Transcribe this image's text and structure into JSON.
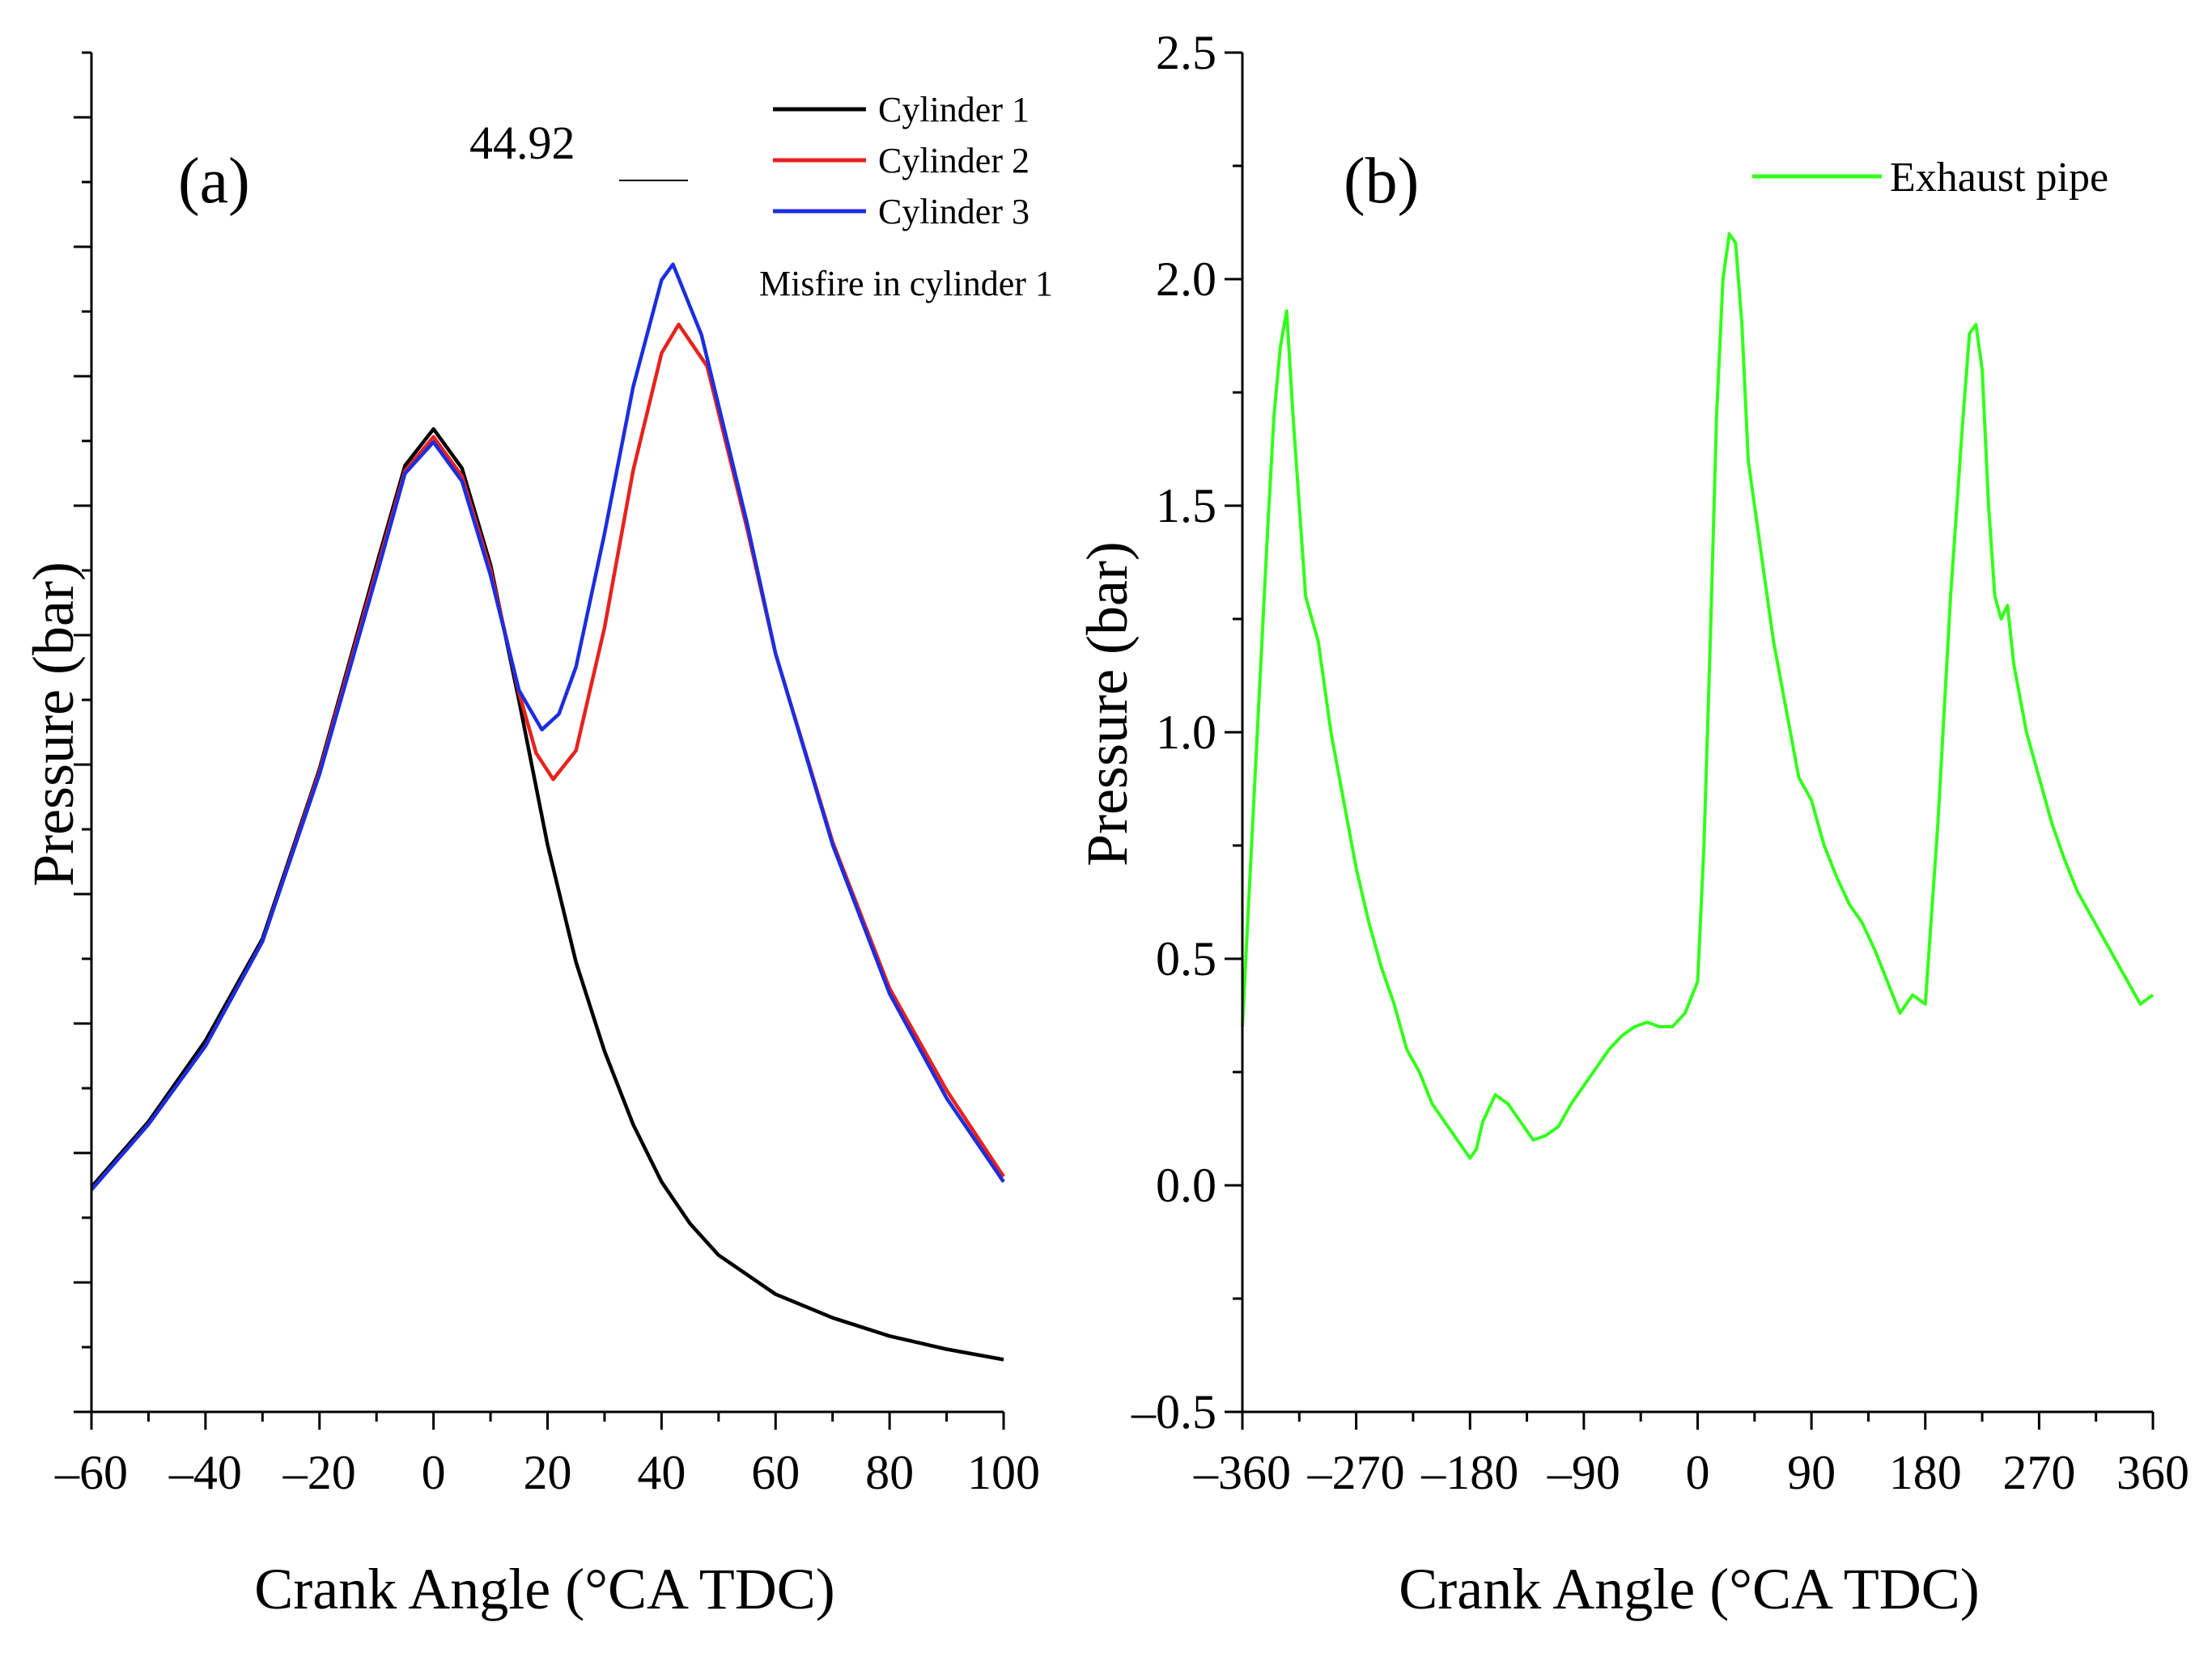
{
  "chart_data": [
    {
      "type": "line",
      "panel_label": "(a)",
      "xlabel": "Crank Angle (°CA TDC)",
      "ylabel": "Pressure (bar)",
      "xlim": [
        -60,
        100
      ],
      "x_ticks": [
        -60,
        -40,
        -20,
        0,
        20,
        40,
        60,
        80,
        100
      ],
      "x_tick_labels": [
        "-60",
        "-40",
        "-20",
        "0",
        "20",
        "40",
        "60",
        "80",
        "100"
      ],
      "ylim": [
        0,
        52
      ],
      "y_tick_labels_shown": false,
      "grid": false,
      "legend_position": "top-right",
      "annotations": {
        "peak_value": "44.92",
        "note": "Misfire in cylinder 1"
      },
      "series": [
        {
          "name": "Cylinder 1",
          "color": "#000000",
          "x": [
            -60,
            -50,
            -40,
            -30,
            -20,
            -10,
            -5,
            0,
            5,
            10,
            15,
            20,
            25,
            30,
            35,
            40,
            45,
            50,
            60,
            70,
            80,
            90,
            100
          ],
          "y": [
            8.6,
            11.1,
            14.2,
            18.1,
            24.6,
            32.4,
            36.2,
            37.6,
            36.1,
            32.4,
            27.2,
            21.7,
            17.2,
            13.8,
            11.0,
            8.8,
            7.2,
            6.0,
            4.5,
            3.6,
            2.9,
            2.4,
            2.0
          ]
        },
        {
          "name": "Cylinder 2",
          "color": "#e8221d",
          "x": [
            -60,
            -50,
            -40,
            -30,
            -20,
            -10,
            -5,
            0,
            5,
            10,
            15,
            18,
            21,
            25,
            30,
            35,
            40,
            43,
            48,
            55,
            60,
            70,
            80,
            90,
            100
          ],
          "y": [
            8.5,
            11.0,
            14.0,
            18.0,
            24.5,
            32.2,
            36.0,
            37.3,
            35.8,
            32.2,
            27.5,
            25.2,
            24.2,
            25.3,
            30.0,
            36.0,
            40.5,
            41.6,
            40.0,
            33.8,
            29.0,
            21.8,
            16.2,
            12.3,
            9.0
          ]
        },
        {
          "name": "Cylinder 3",
          "color": "#1c2ee0",
          "x": [
            -60,
            -50,
            -40,
            -30,
            -20,
            -10,
            -5,
            0,
            5,
            10,
            15,
            19,
            22,
            25,
            30,
            35,
            40,
            42,
            47,
            55,
            60,
            70,
            80,
            90,
            100
          ],
          "y": [
            8.5,
            11.0,
            14.0,
            18.0,
            24.4,
            32.0,
            35.9,
            37.1,
            35.6,
            32.0,
            27.6,
            26.1,
            26.7,
            28.5,
            33.6,
            39.2,
            43.3,
            43.9,
            41.2,
            34.0,
            29.0,
            21.7,
            16.0,
            12.0,
            8.8
          ]
        }
      ]
    },
    {
      "type": "line",
      "panel_label": "(b)",
      "xlabel": "Crank Angle (°CA TDC)",
      "ylabel": "Pressure (bar)",
      "xlim": [
        -360,
        360
      ],
      "x_ticks": [
        -360,
        -270,
        -180,
        -90,
        0,
        90,
        180,
        270,
        360
      ],
      "x_tick_labels": [
        "-360",
        "-270",
        "-180",
        "-90",
        "0",
        "90",
        "180",
        "270",
        "360"
      ],
      "ylim": [
        -0.5,
        2.5
      ],
      "y_ticks": [
        -0.5,
        0.0,
        0.5,
        1.0,
        1.5,
        2.0,
        2.5
      ],
      "y_tick_labels": [
        "-0.5",
        "0.0",
        "0.5",
        "1.0",
        "1.5",
        "2.0",
        "2.5"
      ],
      "grid": false,
      "legend_position": "top-right",
      "series": [
        {
          "name": "Exhaust pipe",
          "color": "#33ff1a",
          "x": [
            -360,
            -350,
            -340,
            -335,
            -330,
            -325,
            -320,
            -315,
            -310,
            -305,
            -300,
            -290,
            -280,
            -270,
            -260,
            -250,
            -240,
            -230,
            -220,
            -210,
            -200,
            -190,
            -180,
            -175,
            -170,
            -160,
            -150,
            -140,
            -130,
            -120,
            -110,
            -100,
            -90,
            -80,
            -70,
            -60,
            -50,
            -40,
            -30,
            -20,
            -10,
            0,
            5,
            10,
            15,
            20,
            25,
            30,
            35,
            40,
            45,
            50,
            55,
            60,
            70,
            80,
            90,
            100,
            110,
            120,
            130,
            140,
            150,
            160,
            170,
            180,
            190,
            200,
            210,
            215,
            220,
            225,
            230,
            235,
            240,
            245,
            250,
            260,
            270,
            280,
            290,
            300,
            310,
            320,
            330,
            340,
            350,
            360
          ],
          "y": [
            0.35,
            0.9,
            1.45,
            1.7,
            1.85,
            1.93,
            1.7,
            1.5,
            1.3,
            1.25,
            1.2,
            1.0,
            0.85,
            0.7,
            0.58,
            0.48,
            0.4,
            0.3,
            0.25,
            0.18,
            0.14,
            0.1,
            0.06,
            0.08,
            0.14,
            0.2,
            0.18,
            0.14,
            0.1,
            0.11,
            0.13,
            0.18,
            0.22,
            0.26,
            0.3,
            0.33,
            0.35,
            0.36,
            0.35,
            0.35,
            0.38,
            0.45,
            0.75,
            1.2,
            1.7,
            2.0,
            2.1,
            2.08,
            1.9,
            1.6,
            1.5,
            1.4,
            1.3,
            1.2,
            1.05,
            0.9,
            0.85,
            0.75,
            0.68,
            0.62,
            0.58,
            0.52,
            0.45,
            0.38,
            0.42,
            0.4,
            0.8,
            1.3,
            1.7,
            1.88,
            1.9,
            1.8,
            1.5,
            1.3,
            1.25,
            1.28,
            1.15,
            1.0,
            0.9,
            0.8,
            0.72,
            0.65,
            0.6,
            0.55,
            0.5,
            0.45,
            0.4,
            0.42
          ]
        }
      ]
    }
  ]
}
